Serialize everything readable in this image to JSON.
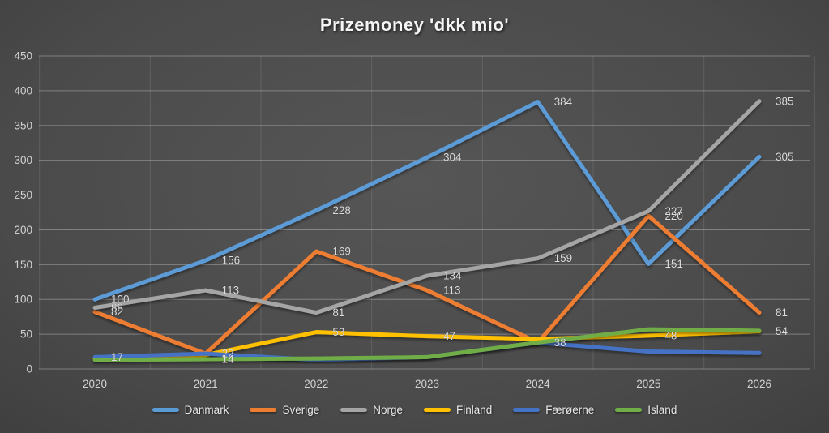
{
  "chart_data": {
    "type": "line",
    "title": "Prizemoney 'dkk mio'",
    "categories": [
      "2020",
      "2021",
      "2022",
      "2023",
      "2024",
      "2025",
      "2026"
    ],
    "series": [
      {
        "name": "Danmark",
        "color": "#5B9BD5",
        "values": [
          100,
          156,
          228,
          304,
          384,
          151,
          305
        ],
        "labels": [
          100,
          156,
          228,
          304,
          384,
          151,
          305
        ]
      },
      {
        "name": "Sverige",
        "color": "#ED7D31",
        "values": [
          82,
          22,
          169,
          113,
          38,
          220,
          81
        ],
        "labels": [
          82,
          22,
          169,
          113,
          38,
          220,
          81
        ]
      },
      {
        "name": "Norge",
        "color": "#A5A5A5",
        "values": [
          88,
          113,
          81,
          134,
          159,
          227,
          385
        ],
        "labels": [
          88,
          113,
          81,
          134,
          159,
          227,
          385
        ]
      },
      {
        "name": "Finland",
        "color": "#FFC000",
        "values": [
          15,
          20,
          53,
          47,
          43,
          48,
          54
        ],
        "labels": [
          null,
          null,
          53,
          47,
          null,
          48,
          54
        ]
      },
      {
        "name": "Færøerne",
        "color": "#4472C4",
        "values": [
          17,
          22,
          13,
          17,
          38,
          25,
          23
        ],
        "labels": [
          17,
          null,
          null,
          null,
          null,
          null,
          null
        ]
      },
      {
        "name": "Island",
        "color": "#70AD47",
        "values": [
          13,
          14,
          15,
          17,
          38,
          57,
          55
        ],
        "labels": [
          null,
          14,
          null,
          null,
          null,
          null,
          null
        ]
      }
    ],
    "y_axis": {
      "min": 0,
      "max": 450,
      "step": 50,
      "ticks": [
        "0",
        "50",
        "100",
        "150",
        "200",
        "250",
        "300",
        "350",
        "400",
        "450"
      ]
    },
    "xlabel": "",
    "ylabel": "",
    "legend_position": "bottom",
    "grid": true
  },
  "colors": {
    "background_center": "#4a4a4a",
    "background_edge": "#1c1c1c",
    "gridline": "#d9d9d9",
    "tick_text": "#d2d2d2",
    "data_label_text": "#dedede",
    "title_text": "#f5f5f5"
  }
}
